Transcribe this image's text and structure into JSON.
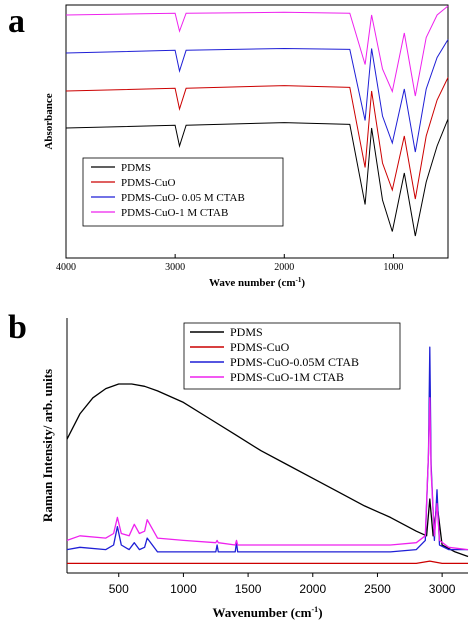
{
  "chart_data": [
    {
      "panel_label": "a",
      "type": "line",
      "xlabel": "Wave number (cm",
      "xlabel_sup": "-1",
      "xlabel_end": ")",
      "ylabel": "Absorbance",
      "xlim": [
        4000,
        500
      ],
      "x_reversed": true,
      "xticks": [
        4000,
        3000,
        2000,
        1000
      ],
      "grid": false,
      "legend_position": "lower-left",
      "series": [
        {
          "name": "PDMS",
          "color": "#000000",
          "offset": 0,
          "x": [
            4000,
            3000,
            2960,
            2900,
            2000,
            1400,
            1260,
            1200,
            1100,
            1010,
            900,
            800,
            700,
            600,
            500
          ],
          "y": [
            0,
            0.03,
            -0.2,
            0.03,
            0.06,
            0.04,
            -0.85,
            0.0,
            -0.8,
            -1.15,
            -0.5,
            -1.2,
            -0.6,
            -0.2,
            0.1
          ]
        },
        {
          "name": "PDMS-CuO",
          "color": "#cc0000",
          "offset": 1,
          "x": [
            4000,
            3000,
            2960,
            2900,
            2000,
            1400,
            1260,
            1200,
            1100,
            1010,
            900,
            800,
            700,
            600,
            500
          ],
          "y": [
            0,
            0.03,
            -0.2,
            0.03,
            0.06,
            0.04,
            -0.85,
            0.0,
            -0.8,
            -1.1,
            -0.5,
            -1.2,
            -0.5,
            -0.1,
            0.15
          ]
        },
        {
          "name": "PDMS-CuO- 0.05 M CTAB",
          "color": "#1f1fd6",
          "offset": 2,
          "x": [
            4000,
            3000,
            2960,
            2900,
            2000,
            1400,
            1260,
            1200,
            1100,
            1010,
            900,
            800,
            700,
            600,
            500
          ],
          "y": [
            0,
            0.03,
            -0.2,
            0.03,
            0.05,
            0.04,
            -0.75,
            0.05,
            -0.7,
            -1.0,
            -0.4,
            -1.1,
            -0.4,
            -0.05,
            0.15
          ]
        },
        {
          "name": "PDMS-CuO-1 M CTAB",
          "color": "#ee22ee",
          "offset": 3,
          "x": [
            4000,
            3000,
            2960,
            2900,
            2000,
            1400,
            1260,
            1200,
            1100,
            1010,
            900,
            800,
            700,
            600,
            500
          ],
          "y": [
            0,
            0.02,
            -0.18,
            0.02,
            0.03,
            0.02,
            -0.55,
            0.0,
            -0.6,
            -0.85,
            -0.2,
            -0.9,
            -0.25,
            0.0,
            0.1
          ]
        }
      ]
    },
    {
      "panel_label": "b",
      "type": "line",
      "xlabel": "Wavenumber (cm",
      "xlabel_sup": "-1",
      "xlabel_end": ")",
      "ylabel": "Raman Intensity/ arb. units",
      "xlim": [
        100,
        3200
      ],
      "xticks": [
        500,
        1000,
        1500,
        2000,
        2500,
        3000
      ],
      "grid": false,
      "legend_position": "top-center",
      "series": [
        {
          "name": "PDMS",
          "color": "#000000",
          "x": [
            100,
            200,
            300,
            400,
            500,
            600,
            700,
            800,
            1000,
            1200,
            1400,
            1600,
            1800,
            2000,
            2200,
            2400,
            2600,
            2800,
            2880,
            2905,
            2930,
            2960,
            3000,
            3100,
            3200
          ],
          "y": [
            0.56,
            0.67,
            0.74,
            0.78,
            0.8,
            0.8,
            0.79,
            0.77,
            0.72,
            0.65,
            0.58,
            0.51,
            0.45,
            0.39,
            0.33,
            0.27,
            0.22,
            0.16,
            0.14,
            0.3,
            0.14,
            0.28,
            0.1,
            0.07,
            0.05
          ]
        },
        {
          "name": "PDMS-CuO",
          "color": "#cc0000",
          "x": [
            100,
            1000,
            2000,
            2800,
            2905,
            3000,
            3200
          ],
          "y": [
            0.02,
            0.02,
            0.02,
            0.02,
            0.03,
            0.02,
            0.02
          ]
        },
        {
          "name": "PDMS-CuO-0.05M CTAB",
          "color": "#1f1fd6",
          "x": [
            100,
            200,
            400,
            460,
            490,
            520,
            580,
            620,
            660,
            700,
            720,
            800,
            1000,
            1250,
            1260,
            1270,
            1400,
            1410,
            1420,
            1800,
            2600,
            2800,
            2870,
            2895,
            2905,
            2915,
            2940,
            2960,
            2980,
            3050,
            3200
          ],
          "y": [
            0.08,
            0.09,
            0.08,
            0.1,
            0.18,
            0.1,
            0.08,
            0.11,
            0.08,
            0.09,
            0.13,
            0.07,
            0.07,
            0.07,
            0.1,
            0.07,
            0.07,
            0.11,
            0.07,
            0.07,
            0.07,
            0.08,
            0.12,
            0.5,
            0.96,
            0.45,
            0.12,
            0.34,
            0.1,
            0.08,
            0.08
          ]
        },
        {
          "name": "PDMS-CuO-1M CTAB",
          "color": "#ee22ee",
          "x": [
            100,
            200,
            400,
            460,
            490,
            520,
            580,
            620,
            660,
            700,
            720,
            800,
            1000,
            1250,
            1260,
            1270,
            1400,
            1410,
            1420,
            1800,
            2600,
            2800,
            2870,
            2895,
            2905,
            2915,
            2940,
            2960,
            2980,
            3050,
            3200
          ],
          "y": [
            0.12,
            0.14,
            0.13,
            0.15,
            0.22,
            0.15,
            0.14,
            0.19,
            0.15,
            0.16,
            0.21,
            0.13,
            0.12,
            0.11,
            0.12,
            0.11,
            0.1,
            0.12,
            0.1,
            0.1,
            0.1,
            0.11,
            0.14,
            0.5,
            0.74,
            0.42,
            0.14,
            0.28,
            0.12,
            0.09,
            0.08
          ]
        }
      ]
    }
  ]
}
